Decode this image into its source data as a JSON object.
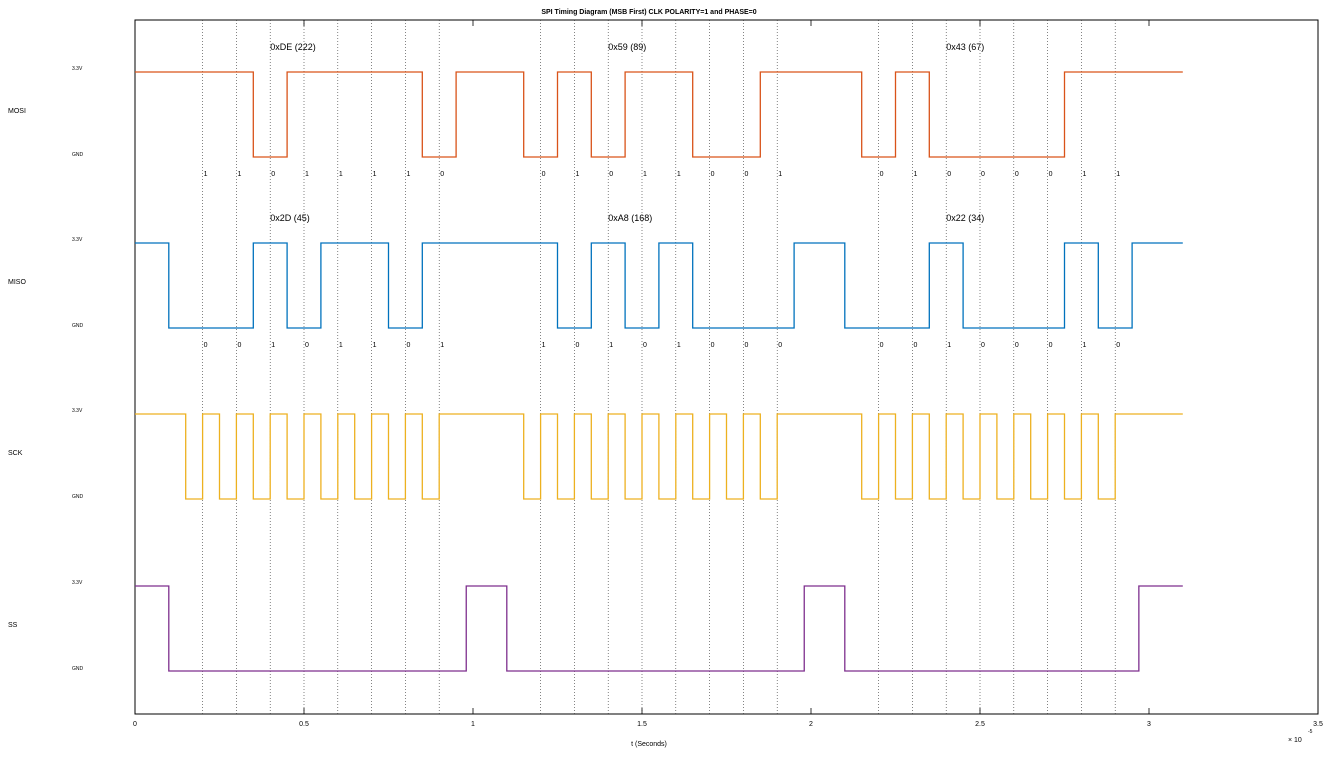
{
  "chart_data": {
    "type": "line",
    "title": "SPI Timing Diagram  (MSB First) CLK POLARITY=1 and PHASE=0",
    "xlabel": "t (Seconds)",
    "x_multiplier": "× 10",
    "x_exponent": "-5",
    "xlim": [
      0,
      3.5
    ],
    "x_ticks": [
      {
        "v": 0,
        "label": "0"
      },
      {
        "v": 0.5,
        "label": "0.5"
      },
      {
        "v": 1,
        "label": "1"
      },
      {
        "v": 1.5,
        "label": "1.5"
      },
      {
        "v": 2,
        "label": "2"
      },
      {
        "v": 2.5,
        "label": "2.5"
      },
      {
        "v": 3,
        "label": "3"
      },
      {
        "v": 3.5,
        "label": "3.5"
      }
    ],
    "grid_vertical_dotted": [
      0.2,
      0.3,
      0.4,
      0.5,
      0.6,
      0.7,
      0.8,
      0.9,
      1.2,
      1.3,
      1.4,
      1.5,
      1.6,
      1.7,
      1.8,
      1.9,
      2.2,
      2.3,
      2.4,
      2.5,
      2.6,
      2.7,
      2.8,
      2.9
    ],
    "level_high_label": "3.3V",
    "level_low_label": "GND",
    "series": [
      {
        "name": "MOSI",
        "color": "#d95319",
        "start_level": 1,
        "transitions": [
          0.35,
          0.45,
          0.85,
          0.95,
          1.15,
          1.25,
          1.35,
          1.45,
          1.65,
          1.85,
          2.15,
          2.25,
          2.35,
          2.75
        ],
        "byte_labels": [
          {
            "x": 0.4,
            "text": "0xDE (222)"
          },
          {
            "x": 1.4,
            "text": "0x59 (89)"
          },
          {
            "x": 2.4,
            "text": "0x43 (67)"
          }
        ],
        "bits": [
          {
            "x": 0.2,
            "b": "1"
          },
          {
            "x": 0.3,
            "b": "1"
          },
          {
            "x": 0.4,
            "b": "0"
          },
          {
            "x": 0.5,
            "b": "1"
          },
          {
            "x": 0.6,
            "b": "1"
          },
          {
            "x": 0.7,
            "b": "1"
          },
          {
            "x": 0.8,
            "b": "1"
          },
          {
            "x": 0.9,
            "b": "0"
          },
          {
            "x": 1.2,
            "b": "0"
          },
          {
            "x": 1.3,
            "b": "1"
          },
          {
            "x": 1.4,
            "b": "0"
          },
          {
            "x": 1.5,
            "b": "1"
          },
          {
            "x": 1.6,
            "b": "1"
          },
          {
            "x": 1.7,
            "b": "0"
          },
          {
            "x": 1.8,
            "b": "0"
          },
          {
            "x": 1.9,
            "b": "1"
          },
          {
            "x": 2.2,
            "b": "0"
          },
          {
            "x": 2.3,
            "b": "1"
          },
          {
            "x": 2.4,
            "b": "0"
          },
          {
            "x": 2.5,
            "b": "0"
          },
          {
            "x": 2.6,
            "b": "0"
          },
          {
            "x": 2.7,
            "b": "0"
          },
          {
            "x": 2.8,
            "b": "1"
          },
          {
            "x": 2.9,
            "b": "1"
          }
        ]
      },
      {
        "name": "MISO",
        "color": "#0072bd",
        "start_level": 1,
        "transitions": [
          0.1,
          0.35,
          0.45,
          0.55,
          0.75,
          0.85,
          1.25,
          1.35,
          1.45,
          1.55,
          1.65,
          1.95,
          2.1,
          2.35,
          2.45,
          2.75,
          2.85,
          2.95
        ],
        "byte_labels": [
          {
            "x": 0.4,
            "text": "0x2D (45)"
          },
          {
            "x": 1.4,
            "text": "0xA8 (168)"
          },
          {
            "x": 2.4,
            "text": "0x22 (34)"
          }
        ],
        "bits": [
          {
            "x": 0.2,
            "b": "0"
          },
          {
            "x": 0.3,
            "b": "0"
          },
          {
            "x": 0.4,
            "b": "1"
          },
          {
            "x": 0.5,
            "b": "0"
          },
          {
            "x": 0.6,
            "b": "1"
          },
          {
            "x": 0.7,
            "b": "1"
          },
          {
            "x": 0.8,
            "b": "0"
          },
          {
            "x": 0.9,
            "b": "1"
          },
          {
            "x": 1.2,
            "b": "1"
          },
          {
            "x": 1.3,
            "b": "0"
          },
          {
            "x": 1.4,
            "b": "1"
          },
          {
            "x": 1.5,
            "b": "0"
          },
          {
            "x": 1.6,
            "b": "1"
          },
          {
            "x": 1.7,
            "b": "0"
          },
          {
            "x": 1.8,
            "b": "0"
          },
          {
            "x": 1.9,
            "b": "0"
          },
          {
            "x": 2.2,
            "b": "0"
          },
          {
            "x": 2.3,
            "b": "0"
          },
          {
            "x": 2.4,
            "b": "1"
          },
          {
            "x": 2.5,
            "b": "0"
          },
          {
            "x": 2.6,
            "b": "0"
          },
          {
            "x": 2.7,
            "b": "0"
          },
          {
            "x": 2.8,
            "b": "1"
          },
          {
            "x": 2.9,
            "b": "0"
          }
        ]
      },
      {
        "name": "SCK",
        "color": "#edb120",
        "start_level": 1,
        "transitions": [
          0.15,
          0.2,
          0.25,
          0.3,
          0.35,
          0.4,
          0.45,
          0.5,
          0.55,
          0.6,
          0.65,
          0.7,
          0.75,
          0.8,
          0.85,
          0.9,
          1.15,
          1.2,
          1.25,
          1.3,
          1.35,
          1.4,
          1.45,
          1.5,
          1.55,
          1.6,
          1.65,
          1.7,
          1.75,
          1.8,
          1.85,
          1.9,
          2.15,
          2.2,
          2.25,
          2.3,
          2.35,
          2.4,
          2.45,
          2.5,
          2.55,
          2.6,
          2.65,
          2.7,
          2.75,
          2.8,
          2.85,
          2.9
        ],
        "byte_labels": [],
        "bits": []
      },
      {
        "name": "SS",
        "color": "#7e2f8e",
        "start_level": 1,
        "transitions": [
          0.1,
          0.98,
          1.1,
          1.98,
          2.1,
          2.97
        ],
        "byte_labels": [],
        "bits": []
      }
    ],
    "x_end": 3.1
  }
}
